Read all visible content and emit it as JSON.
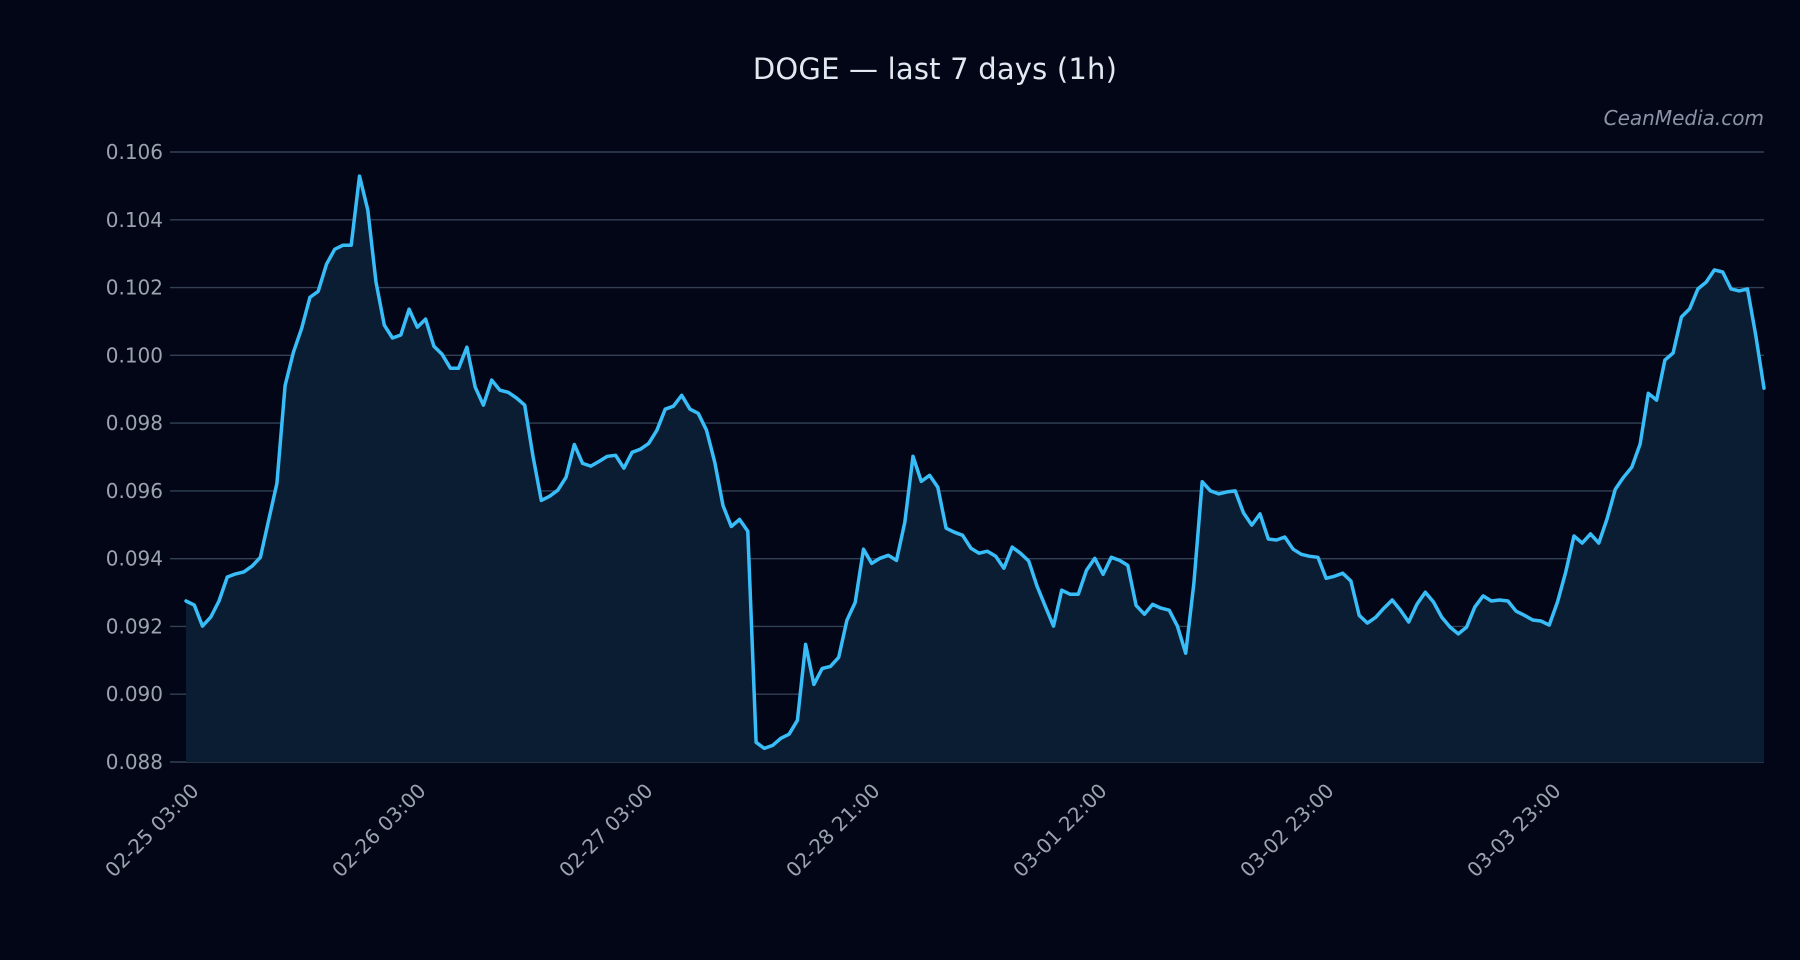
{
  "title": "DOGE — last 7 days (1h)",
  "watermark": "CeanMedia.com",
  "colors": {
    "background": "#020617",
    "line": "#38bdf8",
    "fill": "#0b1d33",
    "grid": "#334155",
    "tick_text": "#9ca3af",
    "title_text": "#e2e8f0"
  },
  "chart_data": {
    "type": "area",
    "title": "DOGE — last 7 days (1h)",
    "xlabel": "",
    "ylabel": "",
    "ylim": [
      0.088,
      0.106
    ],
    "yticks": [
      "0.088",
      "0.090",
      "0.092",
      "0.094",
      "0.096",
      "0.098",
      "0.100",
      "0.102",
      "0.104",
      "0.106"
    ],
    "xticks": [
      "02-25 03:00",
      "02-26 03:00",
      "02-27 03:00",
      "02-28 21:00",
      "03-01 22:00",
      "03-02 23:00",
      "03-03 23:00"
    ],
    "xtick_positions": [
      0,
      24,
      48,
      72,
      96,
      120,
      144
    ],
    "grid": true,
    "legend": null,
    "series": [
      {
        "name": "DOGE",
        "values": [
          0.09275,
          0.09263,
          0.09201,
          0.09228,
          0.09275,
          0.09346,
          0.09355,
          0.09361,
          0.09378,
          0.09404,
          0.09513,
          0.09622,
          0.09911,
          0.10009,
          0.1008,
          0.10171,
          0.10189,
          0.10269,
          0.10313,
          0.10325,
          0.10325,
          0.10529,
          0.10429,
          0.10216,
          0.10089,
          0.10051,
          0.1006,
          0.10136,
          0.10083,
          0.10107,
          0.10027,
          0.10003,
          0.09962,
          0.09962,
          0.10024,
          0.09906,
          0.09853,
          0.09927,
          0.09897,
          0.09891,
          0.09874,
          0.09853,
          0.09702,
          0.09572,
          0.09584,
          0.09602,
          0.0964,
          0.09737,
          0.09681,
          0.09673,
          0.09687,
          0.09702,
          0.09705,
          0.09667,
          0.09714,
          0.09723,
          0.0974,
          0.09779,
          0.09841,
          0.0985,
          0.09882,
          0.09841,
          0.09829,
          0.09779,
          0.09684,
          0.09557,
          0.09495,
          0.09516,
          0.09481,
          0.08858,
          0.0884,
          0.08849,
          0.0887,
          0.08882,
          0.08923,
          0.09147,
          0.09029,
          0.09076,
          0.09082,
          0.09109,
          0.09218,
          0.09271,
          0.09428,
          0.09386,
          0.09401,
          0.0941,
          0.09395,
          0.09507,
          0.09702,
          0.09628,
          0.09646,
          0.09611,
          0.0949,
          0.09478,
          0.09469,
          0.09431,
          0.09416,
          0.09422,
          0.09407,
          0.09372,
          0.09434,
          0.09416,
          0.09393,
          0.09319,
          0.0926,
          0.09201,
          0.09307,
          0.09295,
          0.09295,
          0.09366,
          0.09401,
          0.09354,
          0.09404,
          0.09395,
          0.0938,
          0.09262,
          0.09236,
          0.09265,
          0.09254,
          0.09248,
          0.09201,
          0.09121,
          0.09328,
          0.09627,
          0.096,
          0.09591,
          0.09597,
          0.096,
          0.09535,
          0.09499,
          0.09532,
          0.09458,
          0.09455,
          0.09464,
          0.09428,
          0.09413,
          0.09407,
          0.09404,
          0.09342,
          0.09348,
          0.09357,
          0.09334,
          0.09233,
          0.0921,
          0.09227,
          0.09254,
          0.09278,
          0.09248,
          0.09213,
          0.09266,
          0.09301,
          0.09272,
          0.09227,
          0.09198,
          0.09178,
          0.09198,
          0.09257,
          0.0929,
          0.09275,
          0.09278,
          0.09275,
          0.09245,
          0.09233,
          0.09219,
          0.09216,
          0.09204,
          0.09272,
          0.0936,
          0.09467,
          0.09446,
          0.09473,
          0.09446,
          0.09517,
          0.09605,
          0.0964,
          0.0967,
          0.09738,
          0.09888,
          0.09868,
          0.09986,
          0.10007,
          0.10113,
          0.10137,
          0.10196,
          0.10216,
          0.10252,
          0.10246,
          0.10196,
          0.1019,
          0.10196,
          0.1006,
          0.09903
        ]
      }
    ]
  }
}
